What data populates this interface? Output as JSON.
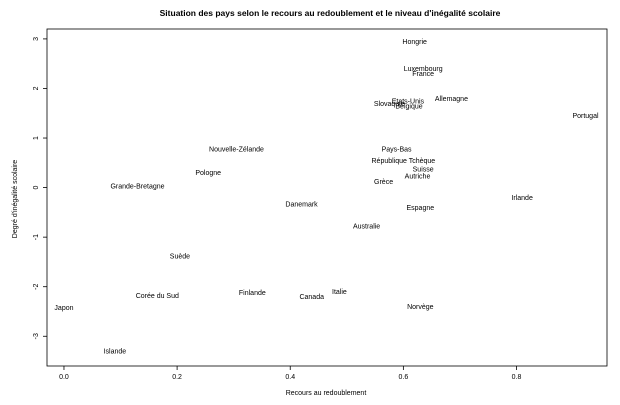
{
  "chart_data": {
    "type": "scatter",
    "title": "Situation des pays selon le recours au redoublement et le niveau d'inégalité scolaire",
    "xlabel": "Recours au redoublement",
    "ylabel": "Degré d'inégalité scolaire",
    "xlim": [
      -0.03,
      0.96
    ],
    "ylim": [
      -3.6,
      3.2
    ],
    "xticks": [
      {
        "value": 0.0,
        "label": "0.0"
      },
      {
        "value": 0.2,
        "label": "0.2"
      },
      {
        "value": 0.4,
        "label": "0.4"
      },
      {
        "value": 0.6,
        "label": "0.6"
      },
      {
        "value": 0.8,
        "label": "0.8"
      }
    ],
    "yticks": [
      {
        "value": -3,
        "label": "-3"
      },
      {
        "value": -2,
        "label": "-2"
      },
      {
        "value": -1,
        "label": "-1"
      },
      {
        "value": 0,
        "label": "0"
      },
      {
        "value": 1,
        "label": "1"
      },
      {
        "value": 2,
        "label": "2"
      },
      {
        "value": 3,
        "label": "3"
      }
    ],
    "grid": false,
    "points": [
      {
        "label": "Hongrie",
        "x": 0.62,
        "y": 2.95
      },
      {
        "label": "Luxembourg",
        "x": 0.635,
        "y": 2.4
      },
      {
        "label": "France",
        "x": 0.635,
        "y": 2.3
      },
      {
        "label": "Allemagne",
        "x": 0.685,
        "y": 1.8
      },
      {
        "label": "Etats-Unis",
        "x": 0.608,
        "y": 1.75
      },
      {
        "label": "Slovaquie",
        "x": 0.575,
        "y": 1.7
      },
      {
        "label": "Belgique",
        "x": 0.61,
        "y": 1.65
      },
      {
        "label": "Portugal",
        "x": 0.922,
        "y": 1.45
      },
      {
        "label": "Pays-Bas",
        "x": 0.588,
        "y": 0.78
      },
      {
        "label": "République Tchèque",
        "x": 0.6,
        "y": 0.55
      },
      {
        "label": "Suisse",
        "x": 0.635,
        "y": 0.38
      },
      {
        "label": "Autriche",
        "x": 0.625,
        "y": 0.23
      },
      {
        "label": "Grèce",
        "x": 0.565,
        "y": 0.12
      },
      {
        "label": "Nouvelle-Zélande",
        "x": 0.305,
        "y": 0.78
      },
      {
        "label": "Pologne",
        "x": 0.255,
        "y": 0.3
      },
      {
        "label": "Grande-Bretagne",
        "x": 0.13,
        "y": 0.03
      },
      {
        "label": "Danemark",
        "x": 0.42,
        "y": -0.33
      },
      {
        "label": "Irlande",
        "x": 0.81,
        "y": -0.2
      },
      {
        "label": "Espagne",
        "x": 0.63,
        "y": -0.4
      },
      {
        "label": "Australie",
        "x": 0.535,
        "y": -0.78
      },
      {
        "label": "Suède",
        "x": 0.205,
        "y": -1.38
      },
      {
        "label": "Finlande",
        "x": 0.333,
        "y": -2.12
      },
      {
        "label": "Italie",
        "x": 0.487,
        "y": -2.1
      },
      {
        "label": "Corée du Sud",
        "x": 0.165,
        "y": -2.18
      },
      {
        "label": "Canada",
        "x": 0.438,
        "y": -2.2
      },
      {
        "label": "Norvège",
        "x": 0.63,
        "y": -2.4
      },
      {
        "label": "Japon",
        "x": 0.0,
        "y": -2.42
      },
      {
        "label": "Islande",
        "x": 0.09,
        "y": -3.3
      }
    ]
  }
}
